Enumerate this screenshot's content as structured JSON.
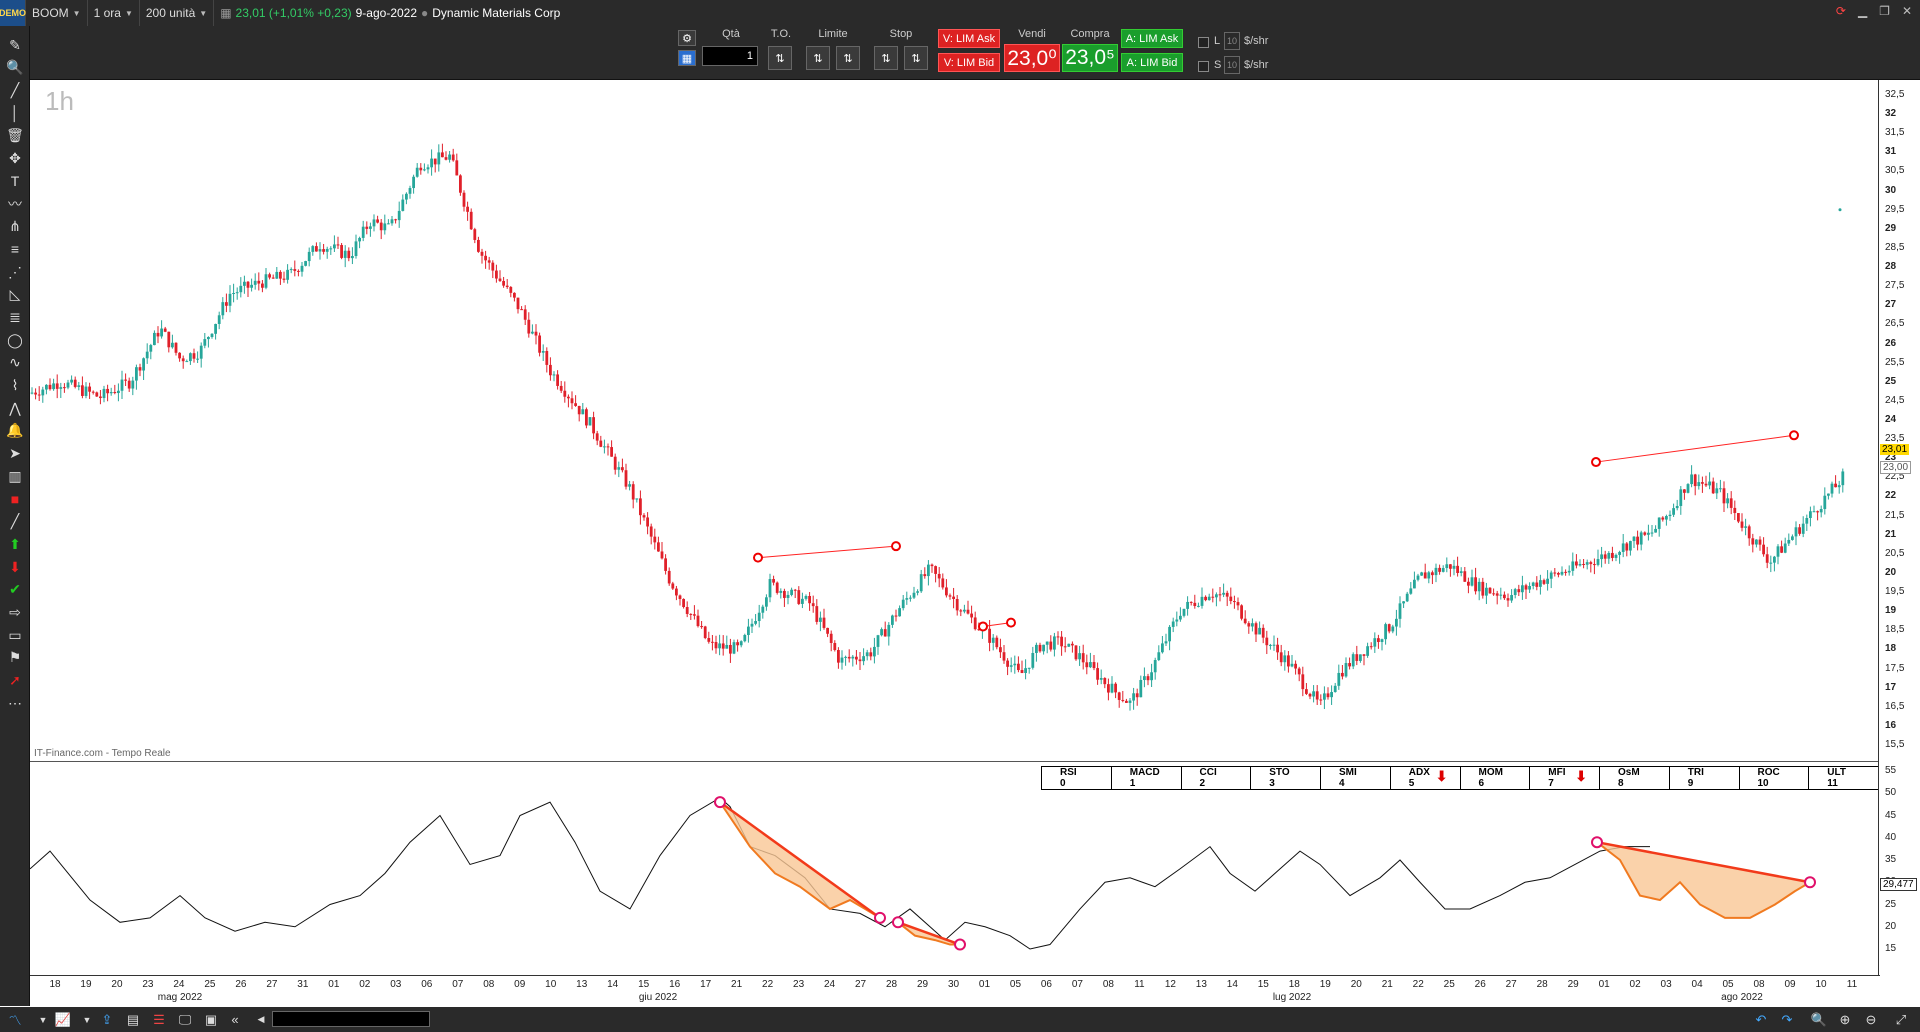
{
  "topbar": {
    "logo": "DEMO",
    "symbol": "BOOM",
    "timeframe": "1 ora",
    "units": "200 unità",
    "price_change": "23,01 (+1,01% +0,23)",
    "date": "9-ago-2022",
    "company": "Dynamic Materials Corp"
  },
  "order": {
    "qty_label": "Qtà",
    "qty_value": "1",
    "to_label": "T.O.",
    "limit_label": "Limite",
    "stop_label": "Stop",
    "sell_label": "Vendi",
    "buy_label": "Compra",
    "sell_ask": "V: LIM Ask",
    "sell_bid": "V: LIM Bid",
    "sell_price": "23,0⁰",
    "buy_price": "23,0⁵",
    "buy_ask": "A: LIM Ask",
    "buy_bid": "A: LIM Bid",
    "l_label": "L",
    "s_label": "S",
    "box_l": "10",
    "box_s": "10",
    "unit_l": "$/shr",
    "unit_s": "$/shr"
  },
  "chart": {
    "timeframe_label": "1h",
    "watermark": "IT-Finance.com - Tempo Reale",
    "last_price": "23,01",
    "bid_price": "23,00",
    "osc_value": "29,477",
    "colors": {
      "up": "#26a69a",
      "down": "#e0202a",
      "line": "#ff2222",
      "fill": "#f9c795"
    },
    "y_ticks_main": [
      "32,5",
      "32",
      "31,5",
      "31",
      "30,5",
      "30",
      "29,5",
      "29",
      "28,5",
      "28",
      "27,5",
      "27",
      "26,5",
      "26",
      "25,5",
      "25",
      "24,5",
      "24",
      "23,5",
      "23",
      "22,5",
      "22",
      "21,5",
      "21",
      "20,5",
      "20",
      "19,5",
      "19",
      "18,5",
      "18",
      "17,5",
      "17",
      "16,5",
      "16",
      "15,5"
    ],
    "y_ticks_osc": [
      "55",
      "50",
      "45",
      "40",
      "35",
      "30",
      "25",
      "20",
      "15"
    ],
    "x_ticks": [
      "18",
      "19",
      "20",
      "23",
      "24",
      "25",
      "26",
      "27",
      "31",
      "01",
      "02",
      "03",
      "06",
      "07",
      "08",
      "09",
      "10",
      "13",
      "14",
      "15",
      "16",
      "17",
      "21",
      "22",
      "23",
      "24",
      "27",
      "28",
      "29",
      "30",
      "01",
      "05",
      "06",
      "07",
      "08",
      "11",
      "12",
      "13",
      "14",
      "15",
      "18",
      "19",
      "20",
      "21",
      "22",
      "25",
      "26",
      "27",
      "28",
      "29",
      "01",
      "02",
      "03",
      "04",
      "05",
      "08",
      "09",
      "10",
      "11"
    ],
    "x_months": [
      "mag 2022",
      "giu 2022",
      "lug 2022",
      "ago 2022"
    ]
  },
  "indicators": [
    {
      "name": "RSI",
      "num": "0"
    },
    {
      "name": "MACD",
      "num": "1"
    },
    {
      "name": "CCI",
      "num": "2"
    },
    {
      "name": "STO",
      "num": "3"
    },
    {
      "name": "SMI",
      "num": "4"
    },
    {
      "name": "ADX",
      "num": "5",
      "arrow": "down"
    },
    {
      "name": "MOM",
      "num": "6"
    },
    {
      "name": "MFI",
      "num": "7",
      "arrow": "down"
    },
    {
      "name": "OsM",
      "num": "8"
    },
    {
      "name": "TRI",
      "num": "9"
    },
    {
      "name": "ROC",
      "num": "10"
    },
    {
      "name": "ULT",
      "num": "11"
    }
  ]
}
